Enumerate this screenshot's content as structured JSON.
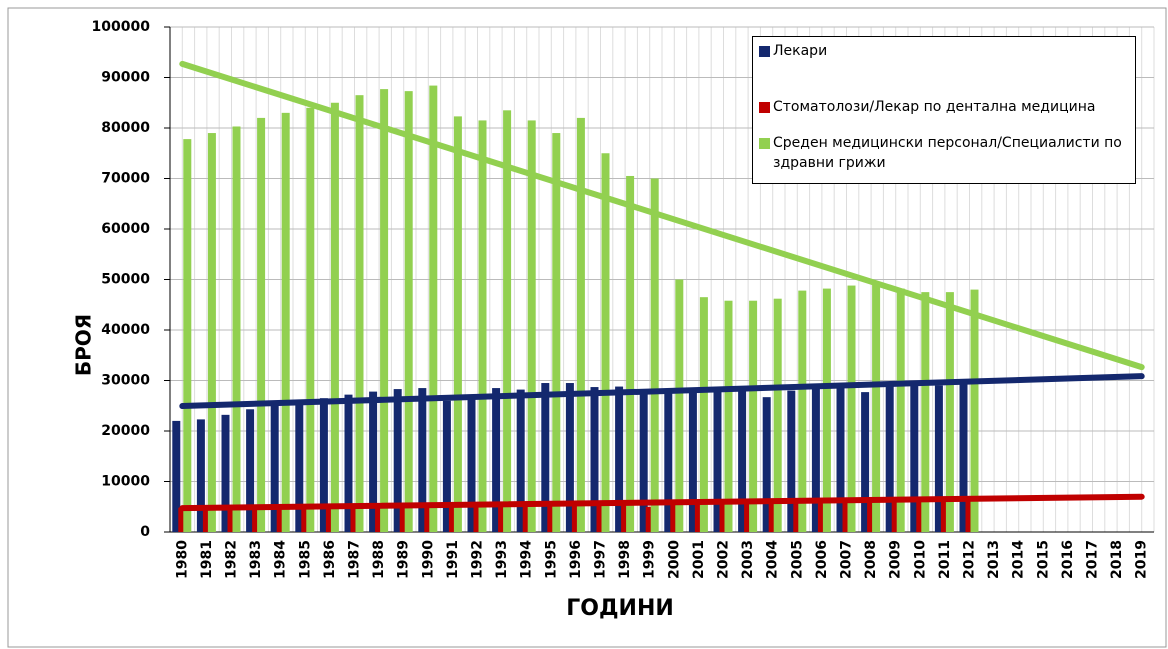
{
  "chart_data": {
    "type": "bar",
    "xlabel": "ГОДИНИ",
    "ylabel": "БРОЯ",
    "categories": [
      "1980",
      "1981",
      "1982",
      "1983",
      "1984",
      "1985",
      "1986",
      "1987",
      "1988",
      "1989",
      "1990",
      "1991",
      "1992",
      "1993",
      "1994",
      "1995",
      "1996",
      "1997",
      "1998",
      "1999",
      "2000",
      "2001",
      "2002",
      "2003",
      "2004",
      "2005",
      "2006",
      "2007",
      "2008",
      "2009",
      "2010",
      "2011",
      "2012",
      "2013",
      "2014",
      "2015",
      "2016",
      "2017",
      "2018",
      "2019"
    ],
    "series": [
      {
        "name": "Лекари",
        "color": "#14286e",
        "trendline": true,
        "values": [
          22000,
          22300,
          23200,
          24300,
          25200,
          25500,
          26500,
          27200,
          27800,
          28300,
          28500,
          26000,
          27000,
          28500,
          28200,
          29500,
          29500,
          28700,
          28800,
          28300,
          28000,
          27800,
          28000,
          28200,
          26700,
          28000,
          28500,
          28500,
          27700,
          29000,
          29000,
          29000,
          29500,
          null,
          null,
          null,
          null,
          null,
          null,
          null
        ]
      },
      {
        "name": "Стоматолози/Лекар по дентална медицина",
        "color": "#c00000",
        "trendline": true,
        "values": [
          4800,
          4900,
          4900,
          5000,
          5000,
          5100,
          5100,
          5200,
          5200,
          5300,
          5300,
          5300,
          5400,
          5400,
          5500,
          5500,
          5600,
          5600,
          5500,
          5000,
          6000,
          6000,
          6100,
          6200,
          6200,
          6300,
          6300,
          6400,
          6400,
          6500,
          6500,
          6600,
          6600,
          null,
          null,
          null,
          null,
          null,
          null,
          null
        ]
      },
      {
        "name": "Среден медицински персонал/Специалисти по здравни грижи",
        "color": "#92d050",
        "trendline": true,
        "values": [
          77800,
          79000,
          80300,
          82000,
          83000,
          84000,
          85000,
          86500,
          87700,
          87300,
          88400,
          82300,
          81500,
          83500,
          81500,
          79000,
          82000,
          75000,
          70500,
          70000,
          50000,
          46500,
          45800,
          45800,
          46200,
          47800,
          48200,
          48800,
          49200,
          48200,
          47500,
          47500,
          48000,
          null,
          null,
          null,
          null,
          null,
          null,
          null
        ]
      }
    ],
    "ylim": [
      0,
      100000
    ],
    "yticks": [
      0,
      10000,
      20000,
      30000,
      40000,
      50000,
      60000,
      70000,
      80000,
      90000,
      100000
    ],
    "grid": true
  }
}
